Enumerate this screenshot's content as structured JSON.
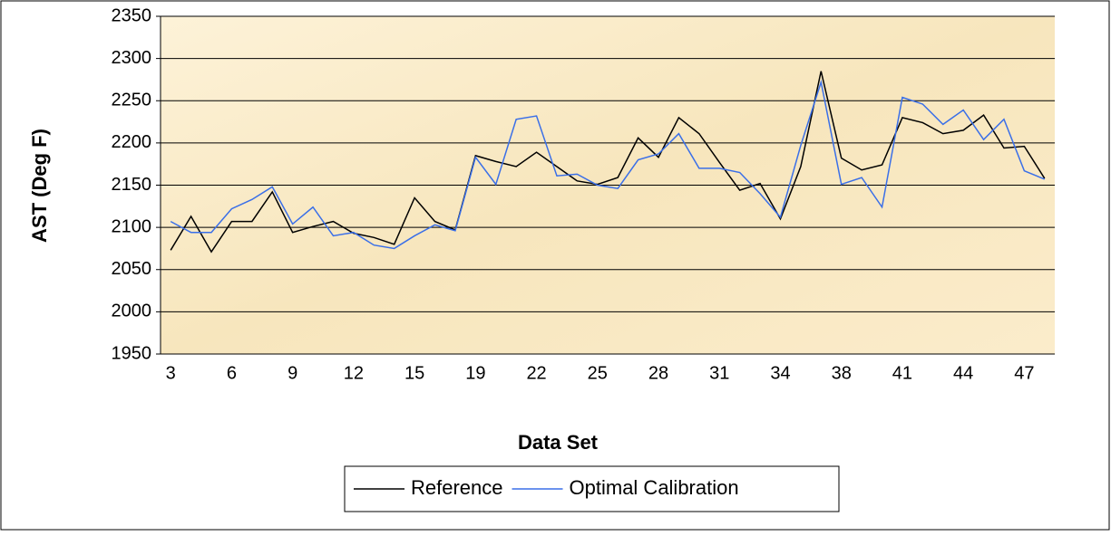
{
  "chart_data": {
    "type": "line",
    "x_label": "Data Set",
    "y_label": "AST (Deg F)",
    "categories": [
      "3",
      null,
      null,
      "6",
      null,
      null,
      "9",
      null,
      null,
      "12",
      null,
      null,
      "15",
      null,
      null,
      "19",
      null,
      null,
      "22",
      null,
      null,
      "25",
      null,
      null,
      "28",
      null,
      null,
      "31",
      null,
      null,
      "34",
      null,
      null,
      "38",
      null,
      null,
      "41",
      null,
      null,
      "44",
      null,
      null,
      "47",
      null
    ],
    "series": [
      {
        "name": "Reference",
        "color": "#000000",
        "values": [
          2073,
          2113,
          2071,
          2107,
          2107,
          2142,
          2094,
          2101,
          2107,
          2093,
          2088,
          2080,
          2135,
          2107,
          2097,
          2185,
          2178,
          2172,
          2189,
          2172,
          2155,
          2151,
          2159,
          2206,
          2183,
          2230,
          2211,
          2177,
          2144,
          2152,
          2110,
          2172,
          2285,
          2182,
          2168,
          2174,
          2230,
          2224,
          2211,
          2215,
          2233,
          2194,
          2196,
          2158
        ]
      },
      {
        "name": "Optimal Calibration",
        "color": "#3a6fe8",
        "values": [
          2107,
          2094,
          2094,
          2122,
          2133,
          2148,
          2104,
          2124,
          2090,
          2094,
          2079,
          2075,
          2090,
          2103,
          2096,
          2183,
          2151,
          2228,
          2232,
          2161,
          2163,
          2150,
          2146,
          2180,
          2187,
          2211,
          2170,
          2170,
          2165,
          2140,
          2112,
          2197,
          2272,
          2151,
          2159,
          2124,
          2254,
          2246,
          2222,
          2239,
          2204,
          2228,
          2167,
          2157
        ]
      }
    ],
    "ylim": [
      1950,
      2350
    ],
    "yticks": [
      1950,
      2000,
      2050,
      2100,
      2150,
      2200,
      2250,
      2300,
      2350
    ],
    "grid": true,
    "legend": "bottom"
  }
}
